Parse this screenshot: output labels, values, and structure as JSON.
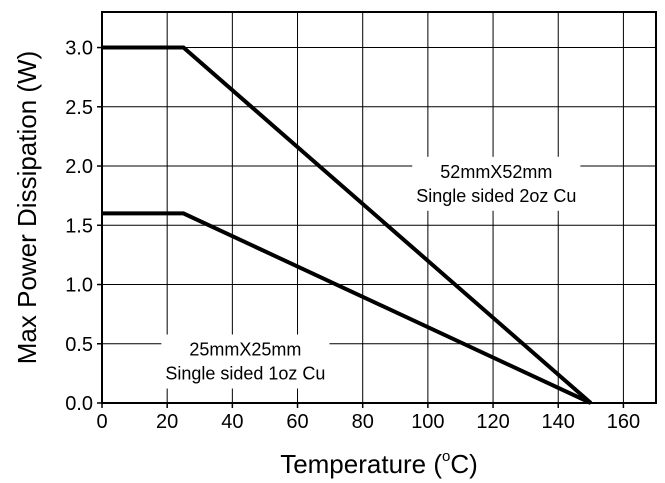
{
  "chart_data": {
    "type": "line",
    "xlabel": "Temperature (",
    "xlabel_sup": "o",
    "xlabel_suffix": "C)",
    "ylabel": "Max Power Dissipation (W)",
    "xlim": [
      0,
      170
    ],
    "ylim": [
      0,
      3.3
    ],
    "xticks": [
      0,
      20,
      40,
      60,
      80,
      100,
      120,
      140,
      160
    ],
    "yticks": [
      0.0,
      0.5,
      1.0,
      1.5,
      2.0,
      2.5,
      3.0
    ],
    "ytick_labels": [
      "0.0",
      "0.5",
      "1.0",
      "1.5",
      "2.0",
      "2.5",
      "3.0"
    ],
    "grid": true,
    "series": [
      {
        "x": [
          0,
          25,
          150
        ],
        "y": [
          3.0,
          3.0,
          0.0
        ]
      },
      {
        "x": [
          0,
          25,
          150
        ],
        "y": [
          1.6,
          1.6,
          0.0
        ]
      }
    ],
    "annotations": [
      {
        "lines": [
          "52mmX52mm",
          "Single sided 2oz Cu"
        ],
        "x": 121,
        "y": 1.85
      },
      {
        "lines": [
          "25mmX25mm",
          "Single sided 1oz Cu"
        ],
        "x": 44,
        "y": 0.35
      }
    ]
  }
}
